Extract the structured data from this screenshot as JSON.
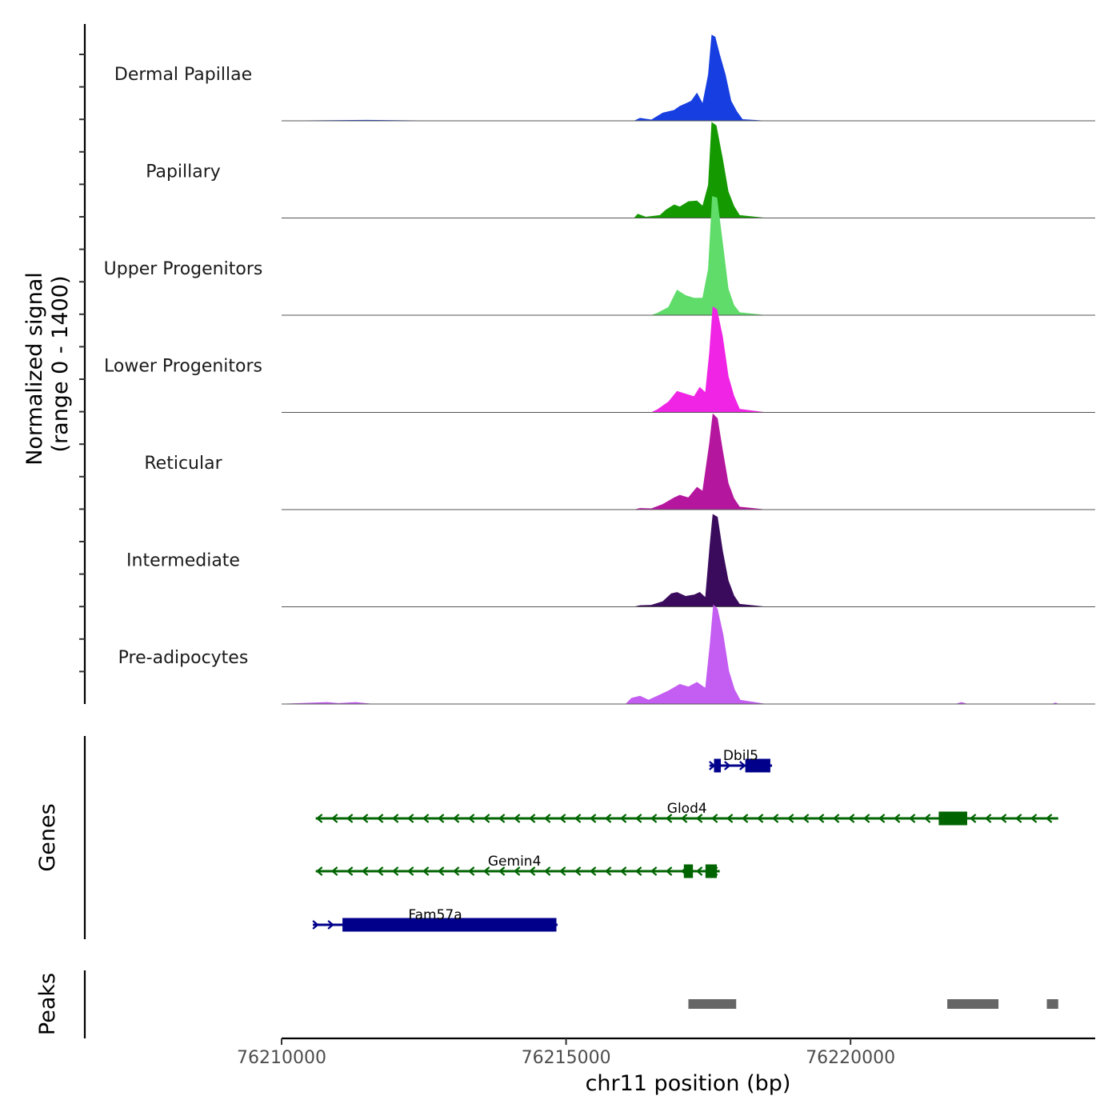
{
  "chart_data": {
    "type": "area",
    "title": "",
    "chromosome": "chr11",
    "xlabel": "chr11 position (bp)",
    "xlim": [
      76210000,
      76224300
    ],
    "xticks": [
      76210000,
      76215000,
      76220000
    ],
    "xtick_labels": [
      "76210000",
      "76215000",
      "76220000"
    ],
    "coverage": {
      "ylabel_line1": "Normalized signal",
      "ylabel_line2": "(range 0 - 1400)",
      "ylim": [
        0,
        1400
      ],
      "tracks": [
        {
          "name": "Dermal Papillae",
          "color": "#173ee0",
          "values": [
            [
              76210000,
              0
            ],
            [
              76211500,
              10
            ],
            [
              76212800,
              0
            ],
            [
              76216200,
              0
            ],
            [
              76216300,
              40
            ],
            [
              76216500,
              15
            ],
            [
              76216700,
              120
            ],
            [
              76216900,
              160
            ],
            [
              76217000,
              220
            ],
            [
              76217100,
              260
            ],
            [
              76217200,
              300
            ],
            [
              76217300,
              420
            ],
            [
              76217400,
              260
            ],
            [
              76217500,
              700
            ],
            [
              76217560,
              1300
            ],
            [
              76217620,
              1270
            ],
            [
              76217700,
              1000
            ],
            [
              76217800,
              700
            ],
            [
              76217900,
              300
            ],
            [
              76218000,
              140
            ],
            [
              76218100,
              20
            ],
            [
              76218500,
              0
            ],
            [
              76224300,
              0
            ]
          ]
        },
        {
          "name": "Papillary",
          "color": "#149a00",
          "values": [
            [
              76210000,
              0
            ],
            [
              76216200,
              0
            ],
            [
              76216260,
              60
            ],
            [
              76216400,
              15
            ],
            [
              76216650,
              40
            ],
            [
              76216750,
              120
            ],
            [
              76216900,
              200
            ],
            [
              76217000,
              170
            ],
            [
              76217150,
              250
            ],
            [
              76217300,
              260
            ],
            [
              76217400,
              180
            ],
            [
              76217500,
              500
            ],
            [
              76217560,
              1450
            ],
            [
              76217640,
              1400
            ],
            [
              76217750,
              900
            ],
            [
              76217850,
              400
            ],
            [
              76217950,
              180
            ],
            [
              76218050,
              40
            ],
            [
              76218500,
              0
            ],
            [
              76224300,
              0
            ]
          ]
        },
        {
          "name": "Upper Progenitors",
          "color": "#5fdc6a",
          "values": [
            [
              76210000,
              0
            ],
            [
              76216500,
              0
            ],
            [
              76216600,
              30
            ],
            [
              76216800,
              120
            ],
            [
              76216950,
              380
            ],
            [
              76217100,
              300
            ],
            [
              76217250,
              260
            ],
            [
              76217400,
              260
            ],
            [
              76217500,
              700
            ],
            [
              76217570,
              1800
            ],
            [
              76217650,
              1780
            ],
            [
              76217750,
              1100
            ],
            [
              76217850,
              400
            ],
            [
              76217950,
              150
            ],
            [
              76218050,
              40
            ],
            [
              76218500,
              0
            ],
            [
              76224300,
              0
            ]
          ]
        },
        {
          "name": "Lower Progenitors",
          "color": "#f024e4",
          "values": [
            [
              76210000,
              0
            ],
            [
              76216500,
              0
            ],
            [
              76216600,
              40
            ],
            [
              76216800,
              160
            ],
            [
              76216950,
              320
            ],
            [
              76217100,
              280
            ],
            [
              76217250,
              240
            ],
            [
              76217350,
              380
            ],
            [
              76217450,
              300
            ],
            [
              76217520,
              900
            ],
            [
              76217580,
              1600
            ],
            [
              76217650,
              1560
            ],
            [
              76217750,
              1150
            ],
            [
              76217850,
              550
            ],
            [
              76217950,
              250
            ],
            [
              76218050,
              50
            ],
            [
              76218500,
              0
            ],
            [
              76224300,
              0
            ]
          ]
        },
        {
          "name": "Reticular",
          "color": "#b5169e",
          "values": [
            [
              76210000,
              0
            ],
            [
              76216200,
              0
            ],
            [
              76216300,
              20
            ],
            [
              76216500,
              15
            ],
            [
              76216700,
              80
            ],
            [
              76216900,
              180
            ],
            [
              76217000,
              220
            ],
            [
              76217150,
              180
            ],
            [
              76217300,
              340
            ],
            [
              76217400,
              280
            ],
            [
              76217520,
              1000
            ],
            [
              76217580,
              1450
            ],
            [
              76217660,
              1380
            ],
            [
              76217750,
              900
            ],
            [
              76217850,
              400
            ],
            [
              76217950,
              170
            ],
            [
              76218050,
              40
            ],
            [
              76218500,
              0
            ],
            [
              76224300,
              0
            ]
          ]
        },
        {
          "name": "Intermediate",
          "color": "#3a0b5c",
          "values": [
            [
              76210000,
              0
            ],
            [
              76216200,
              0
            ],
            [
              76216300,
              20
            ],
            [
              76216500,
              25
            ],
            [
              76216700,
              80
            ],
            [
              76216850,
              200
            ],
            [
              76216950,
              220
            ],
            [
              76217100,
              160
            ],
            [
              76217250,
              180
            ],
            [
              76217350,
              220
            ],
            [
              76217450,
              140
            ],
            [
              76217530,
              950
            ],
            [
              76217580,
              1400
            ],
            [
              76217660,
              1360
            ],
            [
              76217750,
              850
            ],
            [
              76217850,
              400
            ],
            [
              76217950,
              170
            ],
            [
              76218050,
              40
            ],
            [
              76218500,
              0
            ],
            [
              76224300,
              0
            ]
          ]
        },
        {
          "name": "Pre-adipocytes",
          "color": "#c45df2",
          "values": [
            [
              76210000,
              0
            ],
            [
              76210800,
              25
            ],
            [
              76211000,
              10
            ],
            [
              76211300,
              25
            ],
            [
              76211600,
              0
            ],
            [
              76216050,
              0
            ],
            [
              76216150,
              90
            ],
            [
              76216300,
              120
            ],
            [
              76216450,
              60
            ],
            [
              76216600,
              120
            ],
            [
              76216800,
              200
            ],
            [
              76217000,
              300
            ],
            [
              76217150,
              260
            ],
            [
              76217300,
              330
            ],
            [
              76217450,
              240
            ],
            [
              76217530,
              900
            ],
            [
              76217590,
              1500
            ],
            [
              76217660,
              1440
            ],
            [
              76217760,
              1050
            ],
            [
              76217860,
              500
            ],
            [
              76217960,
              220
            ],
            [
              76218060,
              60
            ],
            [
              76218500,
              0
            ],
            [
              76221850,
              0
            ],
            [
              76221950,
              25
            ],
            [
              76222050,
              0
            ],
            [
              76223550,
              0
            ],
            [
              76223600,
              20
            ],
            [
              76223650,
              0
            ],
            [
              76224300,
              0
            ]
          ]
        }
      ]
    },
    "genes": {
      "label": "Genes",
      "items": [
        {
          "name": "Dbil5",
          "strand": "+",
          "color": "#00008b",
          "start": 76217520,
          "end": 76218620,
          "exons": [
            [
              76217600,
              76217720
            ],
            [
              76218150,
              76218590
            ]
          ]
        },
        {
          "name": "Glod4",
          "strand": "-",
          "color": "#006400",
          "start": 76210600,
          "end": 76223650,
          "exons": [
            [
              76221550,
              76222050
            ]
          ]
        },
        {
          "name": "Gemin4",
          "strand": "-",
          "color": "#006400",
          "start": 76210600,
          "end": 76217700,
          "exons": [
            [
              76217070,
              76217230
            ],
            [
              76217450,
              76217650
            ]
          ]
        },
        {
          "name": "Fam57a",
          "strand": "+",
          "color": "#00008b",
          "start": 76210550,
          "end": 76214850,
          "exons": [
            [
              76211070,
              76214830
            ]
          ]
        }
      ]
    },
    "peaks": {
      "label": "Peaks",
      "color": "#666666",
      "ranges": [
        [
          76217150,
          76217990
        ],
        [
          76221700,
          76222600
        ],
        [
          76223450,
          76223650
        ]
      ]
    }
  }
}
